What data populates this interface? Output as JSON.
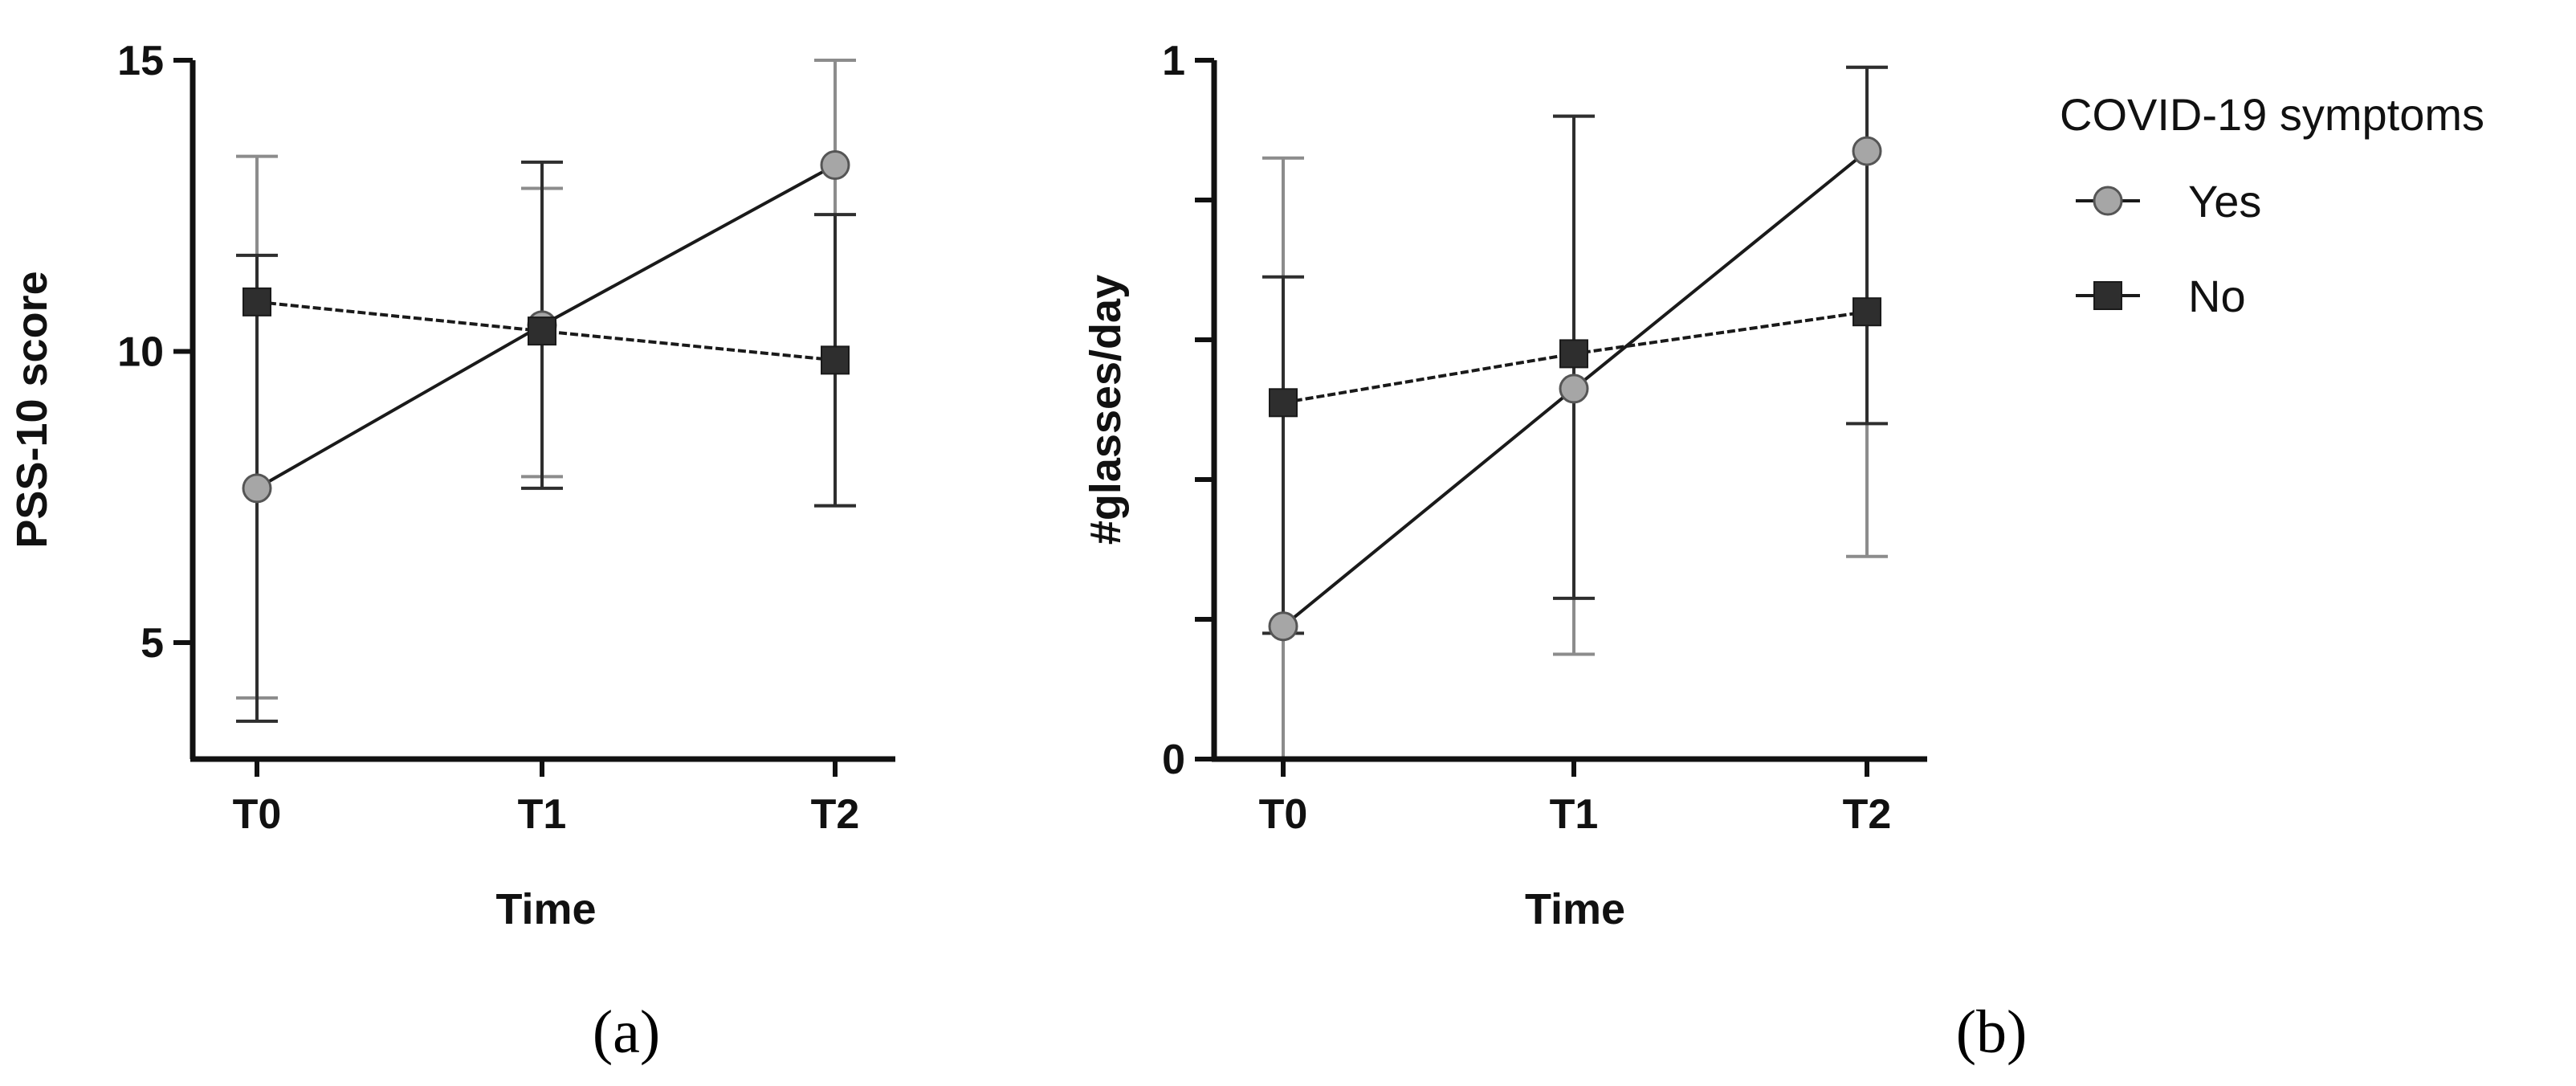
{
  "chart_data": [
    {
      "type": "line",
      "panel": "a",
      "panel_label": "(a)",
      "xlabel": "Time",
      "ylabel": "PSS-10 score",
      "categories": [
        "T0",
        "T1",
        "T2"
      ],
      "ylim": [
        3,
        15
      ],
      "yticks": [
        5,
        10,
        15
      ],
      "ytick_labels": [
        "5",
        "10",
        "15"
      ],
      "grid": false,
      "series": [
        {
          "name": "Yes",
          "marker": "circle",
          "values": [
            7.65,
            10.45,
            13.2
          ],
          "err_low": [
            4.05,
            7.85,
            7.35
          ],
          "err_high": [
            13.35,
            12.8,
            15.0
          ]
        },
        {
          "name": "No",
          "marker": "square",
          "values": [
            10.85,
            10.35,
            9.85
          ],
          "err_low": [
            3.65,
            7.65,
            7.35
          ],
          "err_high": [
            11.65,
            13.25,
            12.35
          ]
        }
      ]
    },
    {
      "type": "line",
      "panel": "b",
      "panel_label": "(b)",
      "xlabel": "Time",
      "ylabel": "#glasses/day",
      "categories": [
        "T0",
        "T1",
        "T2"
      ],
      "ylim": [
        0,
        1
      ],
      "yticks": [
        0,
        0.2,
        0.4,
        0.6,
        0.8,
        1
      ],
      "ytick_labels": [
        "0",
        "",
        "",
        "",
        "",
        "1"
      ],
      "grid": false,
      "series": [
        {
          "name": "Yes",
          "marker": "circle",
          "values": [
            0.19,
            0.53,
            0.87
          ],
          "err_low": [
            0.0,
            0.15,
            0.29
          ],
          "err_high": [
            0.86,
            0.92,
            0.99
          ]
        },
        {
          "name": "No",
          "marker": "square",
          "values": [
            0.51,
            0.58,
            0.64
          ],
          "err_low": [
            0.18,
            0.23,
            0.48
          ],
          "err_high": [
            0.69,
            0.92,
            0.99
          ]
        }
      ]
    }
  ],
  "legend": {
    "title": "COVID-19 symptoms",
    "position": "right",
    "entries": [
      {
        "label": "Yes",
        "marker": "circle"
      },
      {
        "label": "No",
        "marker": "square"
      }
    ]
  },
  "colors": {
    "yes_marker": "#a6a6a6",
    "yes_error": "#8c8c8c",
    "no_marker": "#2e2e2e",
    "axis": "#111111",
    "line": "#1a1a1a"
  }
}
